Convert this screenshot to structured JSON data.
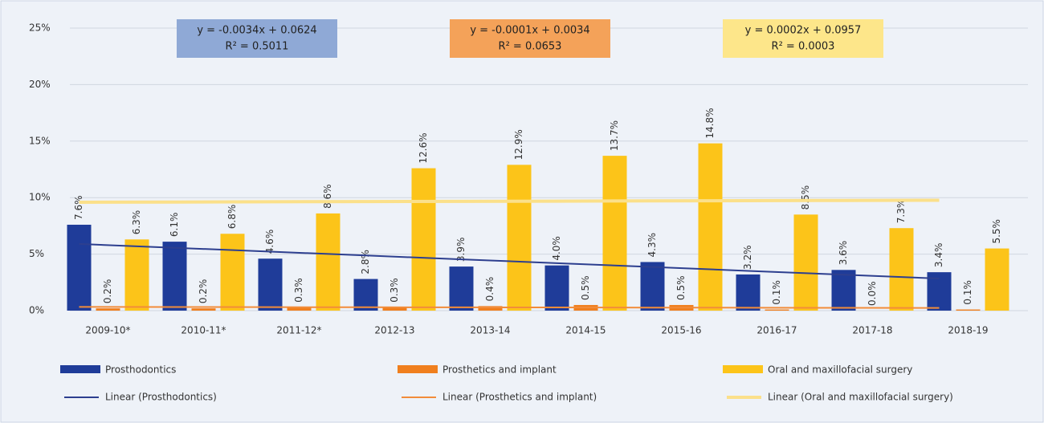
{
  "chart_data": {
    "type": "bar",
    "categories": [
      "2009-10*",
      "2010-11*",
      "2011-12*",
      "2012-13",
      "2013-14",
      "2014-15",
      "2015-16",
      "2016-17",
      "2017-18",
      "2018-19"
    ],
    "series": [
      {
        "name": "Prosthodontics",
        "color": "#1f3c99",
        "values": [
          7.6,
          6.1,
          4.6,
          2.8,
          3.9,
          4.0,
          4.3,
          3.2,
          3.6,
          3.4
        ],
        "value_labels": [
          "7.6%",
          "6.1%",
          "4.6%",
          "2.8%",
          "3.9%",
          "4.0%",
          "4.3%",
          "3.2%",
          "3.6%",
          "3.4%"
        ]
      },
      {
        "name": "Prosthetics and implant",
        "color": "#f07f1e",
        "values": [
          0.2,
          0.2,
          0.3,
          0.3,
          0.4,
          0.5,
          0.5,
          0.1,
          0.0,
          0.1
        ],
        "value_labels": [
          "0.2%",
          "0.2%",
          "0.3%",
          "0.3%",
          "0.4%",
          "0.5%",
          "0.5%",
          "0.1%",
          "0.0%",
          "0.1%"
        ]
      },
      {
        "name": "Oral and maxillofacial surgery",
        "color": "#fcc419",
        "values": [
          6.3,
          6.8,
          8.6,
          12.6,
          12.9,
          13.7,
          14.8,
          8.5,
          7.3,
          5.5
        ],
        "value_labels": [
          "6.3%",
          "6.8%",
          "8.6%",
          "12.6%",
          "12.9%",
          "13.7%",
          "14.8%",
          "8.5%",
          "7.3%",
          "5.5%"
        ]
      }
    ],
    "trendlines": [
      {
        "name": "Linear (Prosthodontics)",
        "color": "#2d3f8f",
        "values": [
          5.9,
          5.56,
          5.22,
          4.88,
          4.54,
          4.2,
          3.86,
          3.52,
          3.18,
          2.84
        ]
      },
      {
        "name": "Linear (Prosthetics and implant)",
        "color": "#f28c3a",
        "values": [
          0.33,
          0.32,
          0.31,
          0.3,
          0.29,
          0.28,
          0.27,
          0.26,
          0.25,
          0.24
        ]
      },
      {
        "name": "Linear (Oral and maxillofacial surgery)",
        "color": "#fbe08a",
        "values": [
          9.59,
          9.61,
          9.63,
          9.65,
          9.67,
          9.69,
          9.71,
          9.73,
          9.75,
          9.77
        ]
      }
    ],
    "annotations": [
      {
        "lines": [
          "y = -0.0034x + 0.0624",
          "R² = 0.5011"
        ],
        "color": "#8fa9d6"
      },
      {
        "lines": [
          "y = -0.0001x + 0.0034",
          "R² = 0.0653"
        ],
        "color": "#f4a259"
      },
      {
        "lines": [
          "y = 0.0002x + 0.0957",
          "R² = 0.0003"
        ],
        "color": "#fde68a"
      }
    ],
    "ylim": [
      0,
      25
    ],
    "yticks": [
      {
        "value": 0,
        "label": "0%"
      },
      {
        "value": 5,
        "label": "5%"
      },
      {
        "value": 10,
        "label": "10%"
      },
      {
        "value": 15,
        "label": "15%"
      },
      {
        "value": 20,
        "label": "20%"
      },
      {
        "value": 25,
        "label": "25%"
      }
    ],
    "grid": true
  }
}
